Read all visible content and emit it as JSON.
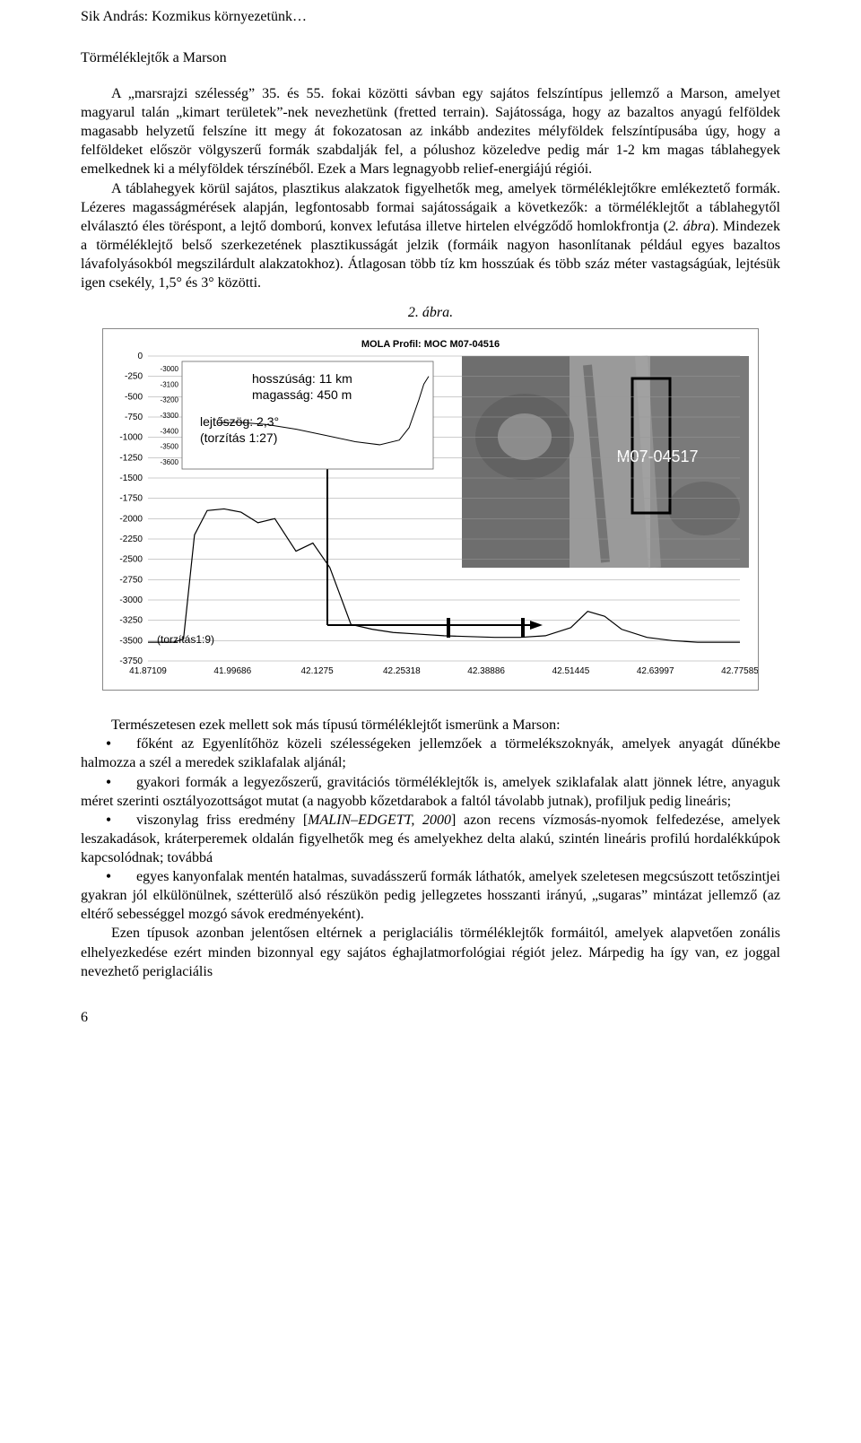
{
  "header": "Sik András: Kozmikus környezetünk…",
  "section_title": "Törméléklejtők a Marson",
  "para1_html": "A „marsrajzi szélesség” 35. és 55. fokai közötti sávban egy sajátos felszíntípus jellemző a Marson, amelyet magyarul talán „kimart területek”-nek nevezhetünk (fretted terrain). Sajátossága, hogy az bazaltos anyagú felföldek magasabb helyzetű felszíne itt megy át fokozatosan az inkább andezites mélyföldek felszíntípusába úgy, hogy a felföldeket először völgyszerű formák szabdalják fel, a pólushoz közeledve pedig már 1-2 km magas táblahegyek emelkednek ki a mélyföldek térszínéből. Ezek a Mars legnagyobb relief-energiájú régiói.",
  "para2_html": "A táblahegyek körül sajátos, plasztikus alakzatok figyelhetők meg, amelyek törméléklejtőkre emlékeztető formák. Lézeres magasságmérések alapján, legfontosabb formai sajátosságaik a következők: a törméléklejtőt a táblahegytől elválasztó éles töréspont, a lejtő domború, konvex lefutása illetve hirtelen elvégződő homlokfrontja (<span class=\"italic\">2. ábra</span>). Mindezek a törméléklejtő belső szerkezetének plasztikusságát jelzik (formáik nagyon hasonlítanak például egyes bazaltos lávafolyásokból megszilárdult alakzatokhoz). Átlagosan több tíz km hosszúak és több száz méter vastagságúak, lejtésük igen csekély, 1,5° és 3° közötti.",
  "figure_caption": "2. ábra.",
  "chart": {
    "title": "MOLA Profil: MOC M07-04516",
    "title_fontsize": 11,
    "title_weight": "bold",
    "photo_label": "M07-04517",
    "inset": {
      "line1": "hosszúság: 11 km",
      "line2": "magasság: 450 m",
      "line3": "lejtőszög: 2,3°",
      "line4": "(torzítás 1:27)",
      "y_ticks": [
        "-3000",
        "-3100",
        "-3200",
        "-3300",
        "-3400",
        "-3500",
        "-3600"
      ]
    },
    "distort_label": "(torzítás1:9)",
    "y_ticks": [
      "0",
      "-250",
      "-500",
      "-750",
      "-1000",
      "-1250",
      "-1500",
      "-1750",
      "-2000",
      "-2250",
      "-2500",
      "-2750",
      "-3000",
      "-3250",
      "-3500",
      "-3750"
    ],
    "x_ticks": [
      "41.87109",
      "41.99686",
      "42.1275",
      "42.25318",
      "42.38886",
      "42.51445",
      "42.63997",
      "42.77585"
    ],
    "colors": {
      "axis": "#000000",
      "grid": "#999999",
      "plot_bg": "#ffffff",
      "photo_bg": "#8b8b8b",
      "photo_dark": "#5e5e5e",
      "photo_light": "#b8b8b8",
      "inset_bg": "#ffffff",
      "line": "#000000",
      "label_box": "#ffffff"
    },
    "profile_points": [
      [
        0,
        -3520
      ],
      [
        30,
        -3520
      ],
      [
        42,
        -3480
      ],
      [
        55,
        -2200
      ],
      [
        70,
        -1900
      ],
      [
        90,
        -1880
      ],
      [
        110,
        -1920
      ],
      [
        130,
        -2050
      ],
      [
        150,
        -2000
      ],
      [
        175,
        -2400
      ],
      [
        195,
        -2300
      ],
      [
        215,
        -2600
      ],
      [
        240,
        -3300
      ],
      [
        265,
        -3360
      ],
      [
        290,
        -3400
      ],
      [
        320,
        -3420
      ],
      [
        350,
        -3440
      ],
      [
        380,
        -3450
      ],
      [
        410,
        -3460
      ],
      [
        440,
        -3460
      ],
      [
        470,
        -3440
      ],
      [
        500,
        -3340
      ],
      [
        520,
        -3140
      ],
      [
        540,
        -3200
      ],
      [
        560,
        -3360
      ],
      [
        590,
        -3460
      ],
      [
        620,
        -3500
      ],
      [
        650,
        -3520
      ],
      [
        680,
        -3520
      ],
      [
        700,
        -3520
      ]
    ],
    "inset_profile": [
      [
        0,
        -3350
      ],
      [
        20,
        -3345
      ],
      [
        50,
        -3360
      ],
      [
        80,
        -3390
      ],
      [
        110,
        -3430
      ],
      [
        140,
        -3470
      ],
      [
        165,
        -3490
      ],
      [
        185,
        -3460
      ],
      [
        195,
        -3380
      ],
      [
        205,
        -3200
      ],
      [
        210,
        -3100
      ],
      [
        215,
        -3050
      ]
    ]
  },
  "para_after_fig": "Természetesen ezek mellett sok más típusú törméléklejtőt ismerünk a Marson:",
  "bullets": [
    "főként az Egyenlítőhöz közeli szélességeken jellemzőek a törmelékszoknyák, amelyek anyagát dűnékbe halmozza a szél a meredek sziklafalak aljánál;",
    "gyakori formák a legyezőszerű, gravitációs törméléklejtők is, amelyek sziklafalak alatt jönnek létre, anyaguk méret szerinti osztályozottságot mutat (a nagyobb kőzetdarabok a faltól távolabb jutnak), profiljuk pedig lineáris;",
    "viszonylag friss eredmény [<span class=\"italic\">MALIN–EDGETT, 2000</span>] azon recens vízmosás-nyomok felfedezése, amelyek leszakadások, kráterperemek oldalán figyelhetők meg és amelyekhez delta alakú, szintén lineáris profilú hordalékkúpok kapcsolódnak; továbbá",
    "egyes kanyonfalak mentén hatalmas, suvadásszerű formák láthatók, amelyek szeletesen megcsúszott tetőszintjei gyakran jól elkülönülnek, szétterülő alsó részükön pedig jellegzetes hosszanti irányú, „sugaras” mintázat jellemző (az eltérő sebességgel mozgó sávok eredményeként)."
  ],
  "para_last_html": "Ezen típusok azonban jelentősen eltérnek a periglaciális törméléklejtők formáitól, amelyek alapvetően zonális elhelyezkedése ezért minden bizonnyal egy sajátos éghajlatmorfológiai régiót jelez. Márpedig ha így van, ez joggal nevezhető periglaciális",
  "page_number": "6"
}
